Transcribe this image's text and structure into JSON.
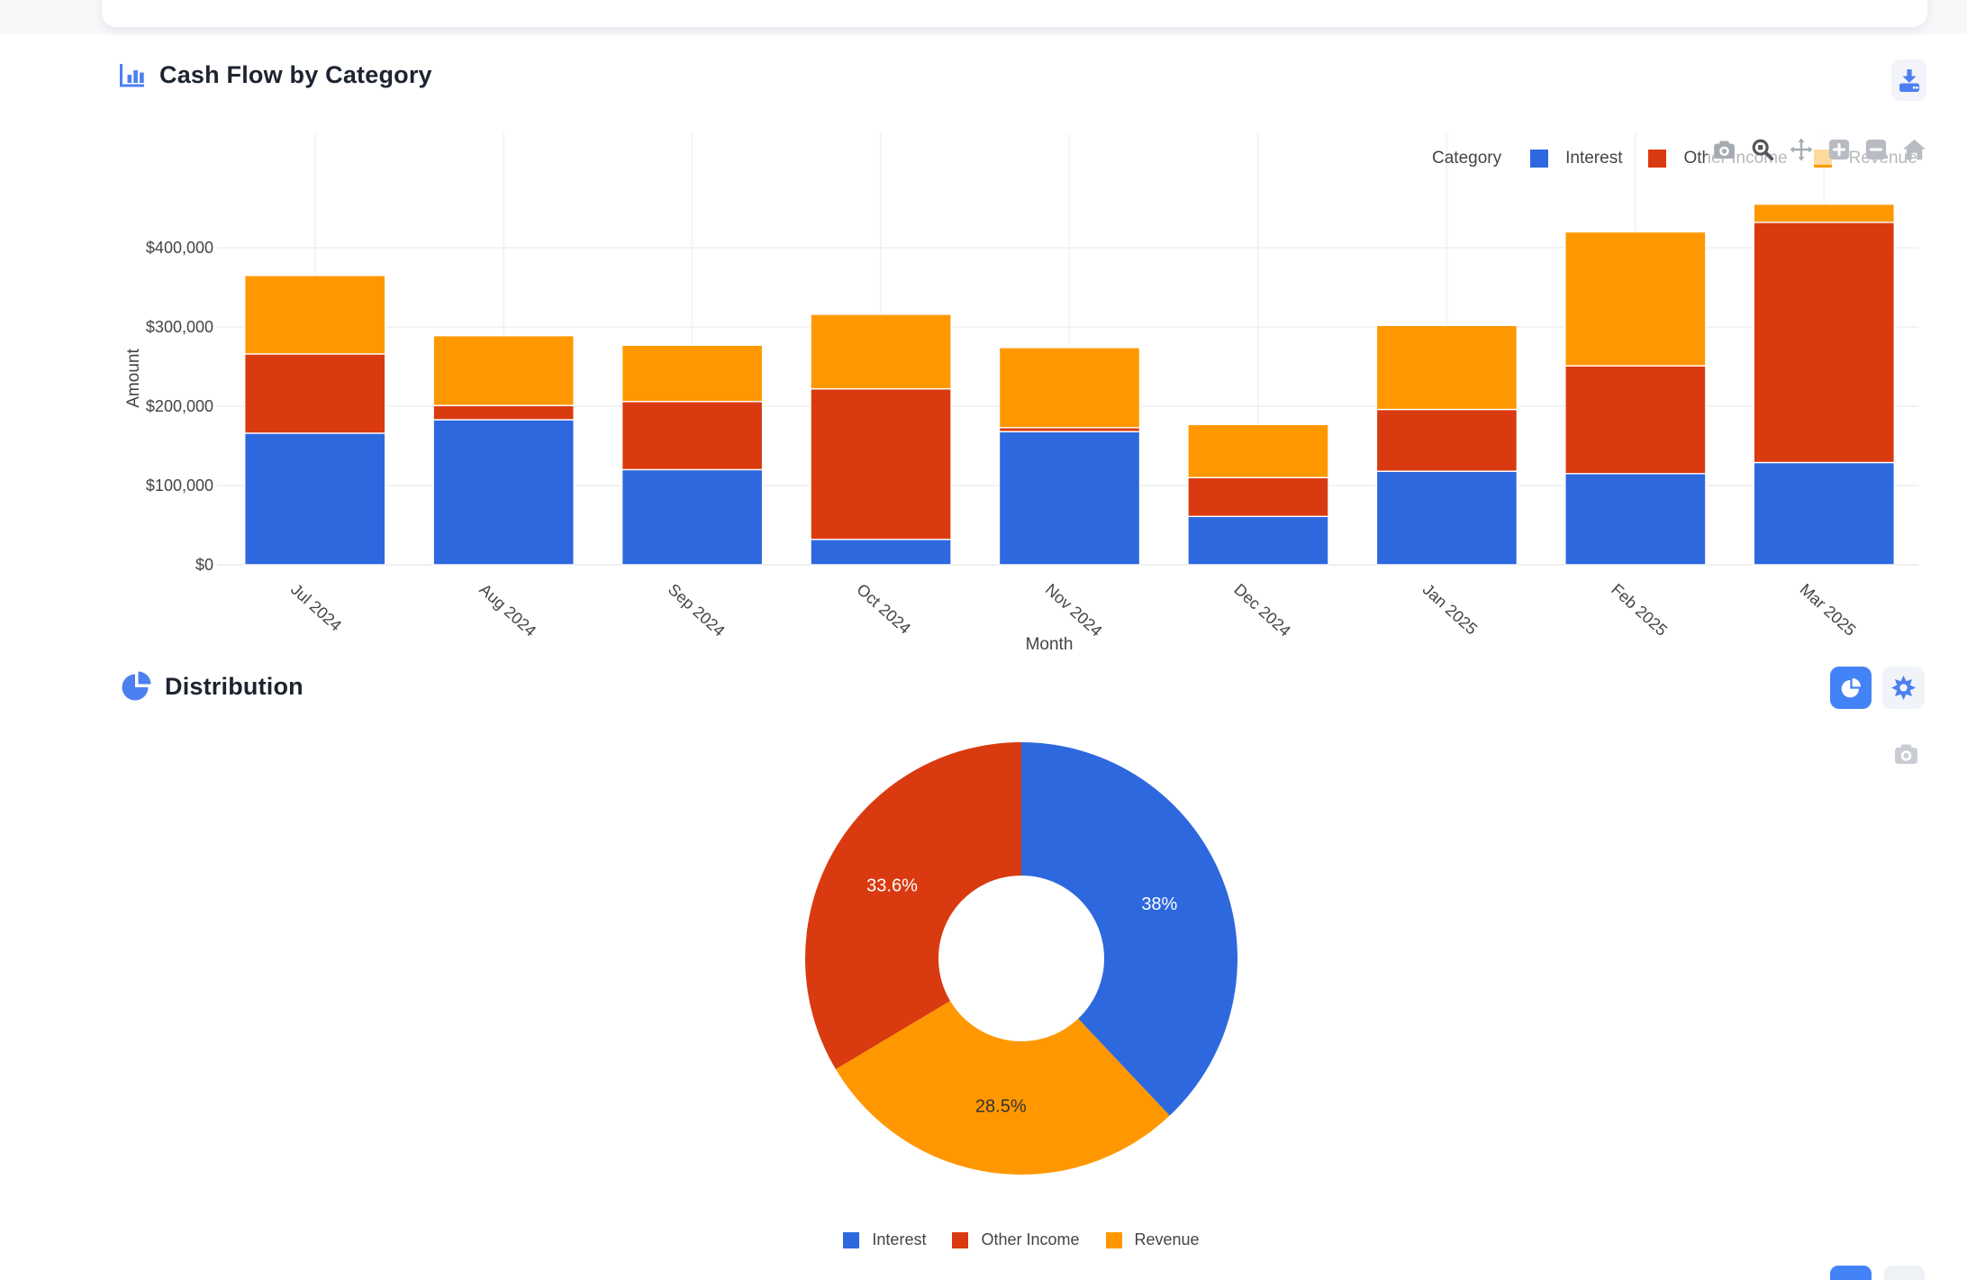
{
  "cashflow": {
    "title": "Cash Flow by Category",
    "legend_title": "Category",
    "header_icon": "bar-chart-icon",
    "download_icon": "download-icon"
  },
  "modebar": {
    "icons": [
      "camera",
      "zoom-box",
      "pan",
      "zoom-in",
      "zoom-out",
      "home"
    ]
  },
  "distribution": {
    "title": "Distribution",
    "header_icon": "pie-chart-icon",
    "view_toggle_icons": [
      "pie-view",
      "sunburst-view"
    ],
    "camera_icon": "camera"
  },
  "colors": {
    "interest": "#2d68de",
    "other_income": "#da3a10",
    "revenue": "#ff9800",
    "accent_blue": "#4c80f0",
    "button_blue": "#4382f7",
    "chart_text": "#444444",
    "grid_line": "#edeff2"
  },
  "chart_data": [
    {
      "id": "cashflow-by-category",
      "type": "bar",
      "stacked": true,
      "title": "",
      "xlabel": "Month",
      "ylabel": "Amount",
      "categories": [
        "Jul 2024",
        "Aug 2024",
        "Sep 2024",
        "Oct 2024",
        "Nov 2024",
        "Dec 2024",
        "Jan 2025",
        "Feb 2025",
        "Mar 2025"
      ],
      "series": [
        {
          "name": "Interest",
          "color": "#2d68de",
          "values": [
            166000,
            183000,
            120000,
            32000,
            168000,
            61000,
            118000,
            115000,
            129000
          ]
        },
        {
          "name": "Other Income",
          "color": "#da3a10",
          "values": [
            100000,
            18000,
            86000,
            190000,
            5000,
            49000,
            78000,
            136000,
            303000
          ]
        },
        {
          "name": "Revenue",
          "color": "#ff9800",
          "values": [
            99000,
            88000,
            71000,
            94000,
            101000,
            67000,
            106000,
            169000,
            23000
          ]
        }
      ],
      "yticks": [
        {
          "value": 0,
          "label": "$0"
        },
        {
          "value": 100000,
          "label": "$100,000"
        },
        {
          "value": 200000,
          "label": "$200,000"
        },
        {
          "value": 300000,
          "label": "$300,000"
        },
        {
          "value": 400000,
          "label": "$400,000"
        }
      ],
      "ylim": [
        0,
        470000
      ],
      "grid": true,
      "legend_title": "Category",
      "legend_position": "top-right"
    },
    {
      "id": "distribution-donut",
      "type": "pie",
      "donut": true,
      "hole": 0.38,
      "direction": "clockwise",
      "start_angle_deg": 0,
      "slices": [
        {
          "label": "Interest",
          "value": 38,
          "display": "38%",
          "color": "#2d68de",
          "label_color": "#ffffff"
        },
        {
          "label": "Revenue",
          "value": 28.5,
          "display": "28.5%",
          "color": "#ff9800",
          "label_color": "#333333"
        },
        {
          "label": "Other Income",
          "value": 33.6,
          "display": "33.6%",
          "color": "#da3a10",
          "label_color": "#ffffff"
        }
      ],
      "legend": [
        {
          "label": "Interest",
          "color": "#2d68de"
        },
        {
          "label": "Other Income",
          "color": "#da3a10"
        },
        {
          "label": "Revenue",
          "color": "#ff9800"
        }
      ],
      "legend_position": "bottom"
    }
  ]
}
